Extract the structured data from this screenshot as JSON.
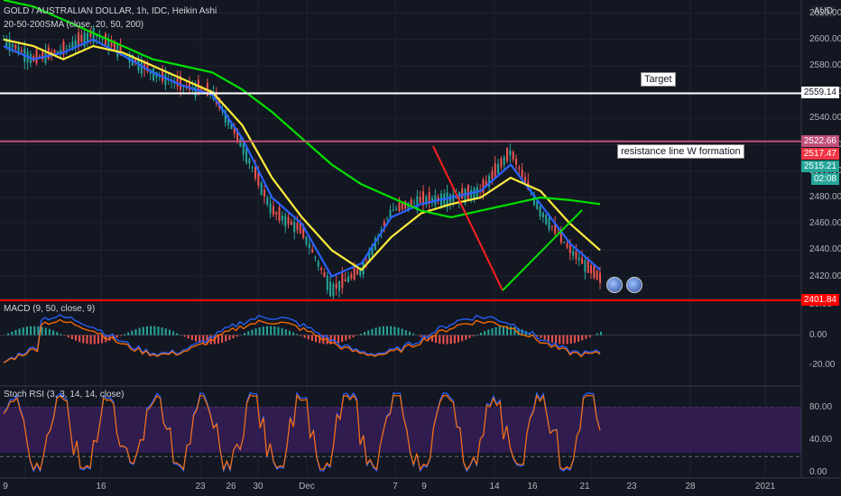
{
  "header": {
    "symbol_line": "GOLD / AUSTRALIAN DOLLAR, 1h, IDC, Heikin Ashi",
    "sma_line": "20-50-200SMA (close, 20, 50, 200)",
    "macd_line": "MACD (9, 50, close, 9)",
    "stoch_line": "Stoch RSI (3, 3, 14, 14, close)",
    "currency": "AUD"
  },
  "annotations": {
    "target": "Target",
    "resistance": "resistance line W formation"
  },
  "price_tags": [
    {
      "value": "2559.14",
      "bg": "#ffffff",
      "fg": "#131722"
    },
    {
      "value": "2522.66",
      "bg": "#c0507a",
      "fg": "#ffffff"
    },
    {
      "value": "2517.47",
      "bg": "#f23645",
      "fg": "#ffffff"
    },
    {
      "value": "2515.21",
      "bg": "#26a69a",
      "fg": "#ffffff"
    },
    {
      "value": "02:08",
      "bg": "#26a69a",
      "fg": "#ffffff"
    },
    {
      "value": "2401.84",
      "bg": "#ff0000",
      "fg": "#ffffff"
    }
  ],
  "x_labels": [
    "9",
    "16",
    "23",
    "26",
    "30",
    "Dec",
    "7",
    "9",
    "14",
    "16",
    "21",
    "23",
    "28",
    "2021"
  ],
  "chart_data": [
    {
      "type": "line",
      "panel": "price",
      "y_axis_ticks": [
        2420,
        2440,
        2460,
        2480,
        2500,
        2520,
        2540,
        2560,
        2580,
        2600,
        2620
      ],
      "y_axis_labels": [
        "2420.00",
        "2440.00",
        "2460.00",
        "2480.00",
        "2500.00",
        "2520.00",
        "2540.00",
        "2560.00",
        "2580.00",
        "2600.00",
        "2620.00"
      ],
      "ylim": [
        2404,
        2630
      ],
      "x": [
        0,
        10,
        20,
        30,
        40,
        50,
        60,
        70,
        80,
        90,
        100,
        110,
        120,
        130,
        140,
        150,
        160,
        170,
        180,
        190,
        200
      ],
      "series": [
        {
          "key": "price",
          "color": "#26a69a",
          "values": [
            2600,
            2585,
            2592,
            2605,
            2590,
            2575,
            2565,
            2560,
            2520,
            2470,
            2455,
            2410,
            2425,
            2470,
            2478,
            2480,
            2485,
            2515,
            2470,
            2440,
            2418
          ]
        },
        {
          "key": "sma20",
          "color": "#2962ff",
          "values": [
            2595,
            2585,
            2590,
            2600,
            2588,
            2575,
            2565,
            2558,
            2525,
            2480,
            2460,
            2420,
            2430,
            2465,
            2475,
            2480,
            2485,
            2505,
            2475,
            2445,
            2425
          ]
        },
        {
          "key": "sma50",
          "color": "#ffeb3b",
          "values": [
            2600,
            2595,
            2585,
            2595,
            2590,
            2580,
            2570,
            2560,
            2535,
            2495,
            2465,
            2440,
            2425,
            2450,
            2468,
            2475,
            2480,
            2495,
            2485,
            2460,
            2440
          ]
        },
        {
          "key": "sma200",
          "color": "#00e000",
          "values": [
            2630,
            2625,
            2615,
            2605,
            2595,
            2585,
            2580,
            2575,
            2562,
            2545,
            2525,
            2505,
            2490,
            2480,
            2470,
            2465,
            2470,
            2475,
            2480,
            2478,
            2475
          ]
        }
      ]
    },
    {
      "type": "line",
      "panel": "macd",
      "y_axis_ticks": [
        -20,
        0,
        20
      ],
      "y_axis_labels": [
        "-20.00",
        "0.00",
        "20.00"
      ],
      "ylim": [
        -33,
        23
      ]
    },
    {
      "type": "line",
      "panel": "stoch_rsi",
      "y_axis_ticks": [
        0,
        40,
        80
      ],
      "y_axis_labels": [
        "0.00",
        "40.00",
        "80.00"
      ],
      "ylim": [
        -5,
        105
      ],
      "band": [
        20,
        80
      ]
    }
  ],
  "lines": {
    "target_price": 2559.14,
    "resistance_price": 2522.66,
    "support_price": 2401.84
  }
}
